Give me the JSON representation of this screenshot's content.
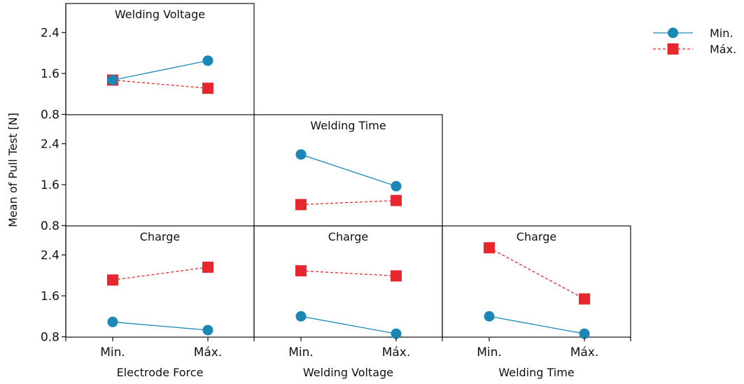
{
  "chart_data": {
    "type": "line",
    "subtype": "interaction-plot-matrix",
    "ylabel": "Mean of Pull Test [N]",
    "yticks": [
      "0.8",
      "1.6",
      "2.4"
    ],
    "ylim": [
      0.8,
      2.9
    ],
    "categories": [
      "Min.",
      "Máx."
    ],
    "legend": {
      "placement": "top-right",
      "entries": [
        "Min.",
        "Máx."
      ]
    },
    "series_colors": {
      "Min.": "#1a87b5",
      "Máx.": "#e8262d"
    },
    "column_labels": [
      "Electrode Force",
      "Welding Voltage",
      "Welding Time"
    ],
    "panels": [
      {
        "row": 0,
        "col": 0,
        "title": "Welding Voltage",
        "x_factor": "Electrode Force",
        "series": [
          {
            "name": "Min.",
            "values": [
              1.47,
              1.85
            ]
          },
          {
            "name": "Máx.",
            "values": [
              1.47,
              1.31
            ]
          }
        ]
      },
      {
        "row": 1,
        "col": 1,
        "title": "Welding Time",
        "x_factor": "Welding Voltage",
        "series": [
          {
            "name": "Min.",
            "values": [
              2.19,
              1.57
            ]
          },
          {
            "name": "Máx.",
            "values": [
              1.21,
              1.29
            ]
          }
        ]
      },
      {
        "row": 2,
        "col": 0,
        "title": "Charge",
        "x_factor": "Electrode Force",
        "series": [
          {
            "name": "Min.",
            "values": [
              1.09,
              0.93
            ]
          },
          {
            "name": "Máx.",
            "values": [
              1.91,
              2.16
            ]
          }
        ]
      },
      {
        "row": 2,
        "col": 1,
        "title": "Charge",
        "x_factor": "Welding Voltage",
        "series": [
          {
            "name": "Min.",
            "values": [
              1.2,
              0.86
            ]
          },
          {
            "name": "Máx.",
            "values": [
              2.09,
              1.99
            ]
          }
        ]
      },
      {
        "row": 2,
        "col": 2,
        "title": "Charge",
        "x_factor": "Welding Time",
        "series": [
          {
            "name": "Min.",
            "values": [
              1.2,
              0.86
            ]
          },
          {
            "name": "Máx.",
            "values": [
              2.54,
              1.54
            ]
          }
        ]
      }
    ]
  }
}
